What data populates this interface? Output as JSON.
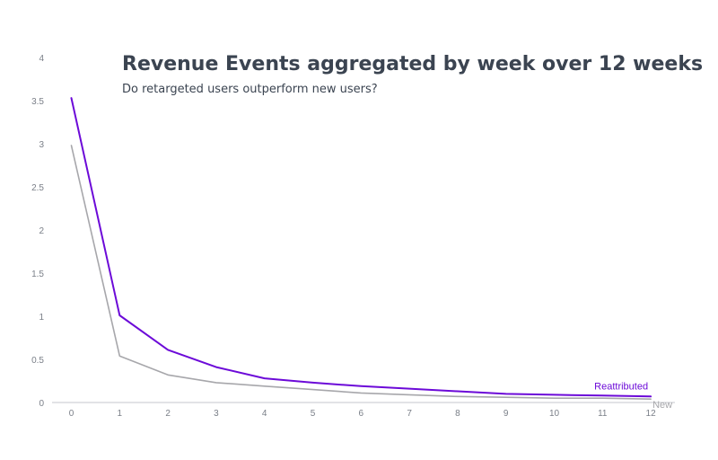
{
  "chart_data": {
    "type": "line",
    "title": "Revenue Events aggregated by week over 12 weeks",
    "subtitle": "Do retargeted users outperform new users?",
    "xlabel": "",
    "ylabel": "",
    "x": [
      0,
      1,
      2,
      3,
      4,
      5,
      6,
      7,
      8,
      9,
      10,
      11,
      12
    ],
    "xlim": [
      -0.4,
      12.5
    ],
    "ylim": [
      0,
      4
    ],
    "xticks": [
      "0",
      "1",
      "2",
      "3",
      "4",
      "5",
      "6",
      "7",
      "8",
      "9",
      "10",
      "11",
      "12"
    ],
    "yticks": [
      "0",
      "0.5",
      "1",
      "1.5",
      "2",
      "2.5",
      "3",
      "3.5",
      "4"
    ],
    "grid": false,
    "legend": "inline labels at line ends",
    "series": [
      {
        "name": "Reattributed",
        "color": "#6c0ad8",
        "values": [
          3.53,
          1.01,
          0.61,
          0.41,
          0.28,
          0.23,
          0.19,
          0.16,
          0.13,
          0.1,
          0.09,
          0.08,
          0.07
        ]
      },
      {
        "name": "New",
        "color": "#a7a7ab",
        "values": [
          2.98,
          0.54,
          0.32,
          0.23,
          0.19,
          0.15,
          0.11,
          0.09,
          0.07,
          0.06,
          0.05,
          0.05,
          0.04
        ]
      }
    ],
    "axis_color": "#c4c7cc"
  }
}
